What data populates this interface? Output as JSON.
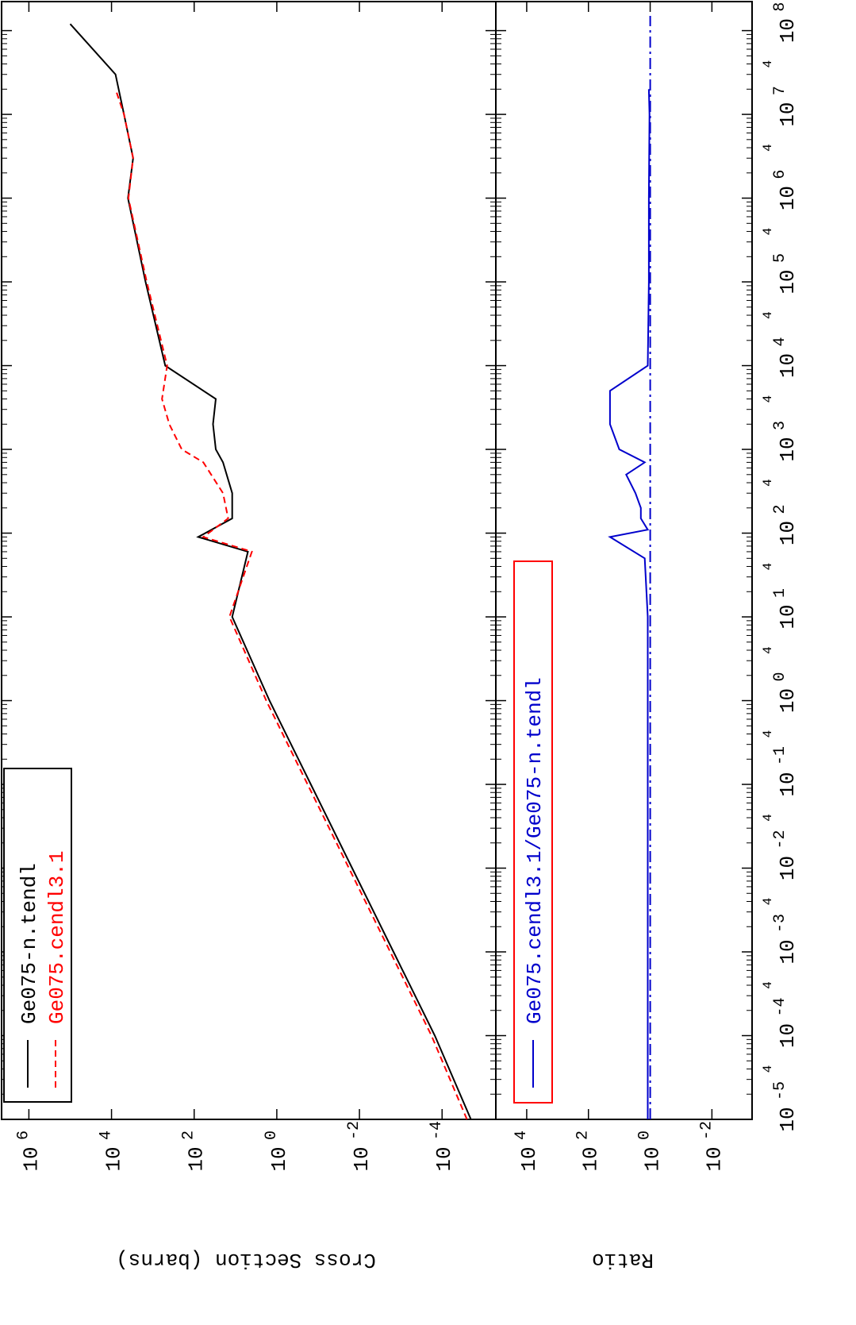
{
  "chart_data": [
    {
      "type": "line",
      "panel": "top",
      "ylabel": "Cross Section (barns)",
      "xscale": "log",
      "yscale": "log",
      "xlim": [
        1e-05,
        150000000.0
      ],
      "ylim": [
        5e-06,
        5000000.0
      ],
      "yticks": [
        "10^6",
        "10^4",
        "10^2",
        "10^0",
        "10^-2",
        "10^-4"
      ],
      "xticks": [
        "10^-5",
        "10^-4",
        "10^-3",
        "10^-2",
        "10^-1",
        "10^0",
        "10^1",
        "10^2",
        "10^3",
        "10^4",
        "10^5",
        "10^6",
        "10^7",
        "10^8"
      ],
      "minor_tick_label": "4",
      "legend": {
        "position": "upper-left"
      },
      "series": [
        {
          "name": "Ge075-n.tendl",
          "color": "#000000",
          "style": "solid",
          "x": [
            1e-05,
            0.0001,
            0.001,
            0.01,
            0.1,
            1,
            10,
            60,
            90,
            150,
            300,
            700,
            1000,
            2000,
            4000,
            10000.0,
            100000.0,
            1000000.0,
            3000000.0,
            10000000.0,
            30000000.0,
            120000000.0
          ],
          "y": [
            2e-05,
            0.00015,
            0.0015,
            0.015,
            0.15,
            1.5,
            12,
            5,
            80,
            12,
            12,
            20,
            30,
            35,
            30,
            500,
            1500,
            4000,
            3000,
            5000,
            8000,
            100000
          ]
        },
        {
          "name": "Ge075.cendl3.1",
          "color": "#ff0000",
          "style": "dashed",
          "x": [
            1e-05,
            0.0001,
            0.001,
            0.01,
            0.1,
            1,
            10,
            60,
            90,
            150,
            300,
            700,
            1000,
            2000,
            4000,
            10000.0,
            100000.0,
            1000000.0,
            3000000.0,
            10000000.0,
            20000000.0
          ],
          "y": [
            2.5e-05,
            0.00018,
            0.0018,
            0.018,
            0.18,
            1.8,
            14,
            4,
            60,
            15,
            20,
            60,
            200,
            400,
            600,
            450,
            1400,
            3900,
            3000,
            5000,
            8000
          ]
        }
      ]
    },
    {
      "type": "line",
      "panel": "bottom",
      "ylabel": "Ratio",
      "xscale": "log",
      "yscale": "log",
      "xlim": [
        1e-05,
        150000000.0
      ],
      "ylim": [
        0.0005,
        100000.0
      ],
      "yticks": [
        "10^4",
        "10^2",
        "10^0",
        "10^-2"
      ],
      "legend": {
        "position": "upper-left"
      },
      "series": [
        {
          "name": "Ge075.cendl3.1/Ge075-n.tendl",
          "color": "#0000cc",
          "style": "solid",
          "x": [
            1e-05,
            10,
            50,
            90,
            110,
            150,
            200,
            300,
            500,
            700,
            1000,
            2000,
            5000,
            10000.0,
            100000.0,
            1000000.0,
            10000000.0,
            20000000.0
          ],
          "y": [
            1.2,
            1.2,
            1.5,
            20,
            1.2,
            2,
            2,
            3,
            6,
            1.5,
            10,
            20,
            20,
            1.2,
            1.1,
            1.1,
            1.05,
            1.1
          ]
        },
        {
          "name": "",
          "color": "#0000cc",
          "style": "dash-dot",
          "x": [
            1e-05,
            150000000.0
          ],
          "y": [
            1,
            1
          ]
        }
      ]
    }
  ]
}
